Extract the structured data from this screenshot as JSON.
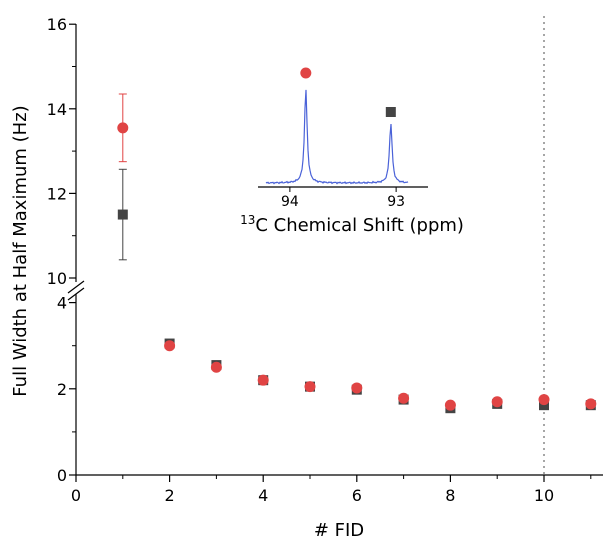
{
  "chart_data": {
    "type": "scatter",
    "xlabel": "# FID",
    "ylabel": "Full Width at Half Maximum (Hz)",
    "xlim": [
      0,
      11.3
    ],
    "x_ticks": [
      0,
      2,
      4,
      6,
      8,
      10
    ],
    "ylim_lower": [
      0,
      4.5
    ],
    "ylim_upper": [
      9.9,
      16
    ],
    "y_ticks_lower": [
      0,
      2,
      4
    ],
    "y_ticks_upper": [
      10,
      12,
      14,
      16
    ],
    "axis_break": "between 4 and 10",
    "vline_x": 10,
    "series": [
      {
        "marker": "square",
        "color": "#444444",
        "points": [
          {
            "x": 1,
            "y": 11.5,
            "err": 1.07
          },
          {
            "x": 2,
            "y": 3.05
          },
          {
            "x": 3,
            "y": 2.55
          },
          {
            "x": 4,
            "y": 2.2
          },
          {
            "x": 5,
            "y": 2.05
          },
          {
            "x": 6,
            "y": 1.98
          },
          {
            "x": 7,
            "y": 1.75
          },
          {
            "x": 8,
            "y": 1.55
          },
          {
            "x": 9,
            "y": 1.65
          },
          {
            "x": 10,
            "y": 1.62
          },
          {
            "x": 11,
            "y": 1.62
          }
        ]
      },
      {
        "marker": "circle",
        "color": "#e04444",
        "points": [
          {
            "x": 1,
            "y": 13.55,
            "err": 0.8
          },
          {
            "x": 2,
            "y": 3.0
          },
          {
            "x": 3,
            "y": 2.5
          },
          {
            "x": 4,
            "y": 2.2
          },
          {
            "x": 5,
            "y": 2.05
          },
          {
            "x": 6,
            "y": 2.02
          },
          {
            "x": 7,
            "y": 1.78
          },
          {
            "x": 8,
            "y": 1.62
          },
          {
            "x": 9,
            "y": 1.7
          },
          {
            "x": 10,
            "y": 1.75
          },
          {
            "x": 11,
            "y": 1.65
          }
        ]
      }
    ],
    "inset": {
      "xlabel_sup": "13",
      "xlabel_rest": "C Chemical Shift (ppm)",
      "x_ticks": [
        94,
        93
      ],
      "xlim": [
        94.3,
        92.7
      ],
      "spectrum_color": "#4a62d8",
      "peaks": [
        {
          "ppm": 93.85,
          "marker": "circle",
          "color": "#e04444"
        },
        {
          "ppm": 93.05,
          "marker": "square",
          "color": "#444444"
        }
      ]
    }
  }
}
